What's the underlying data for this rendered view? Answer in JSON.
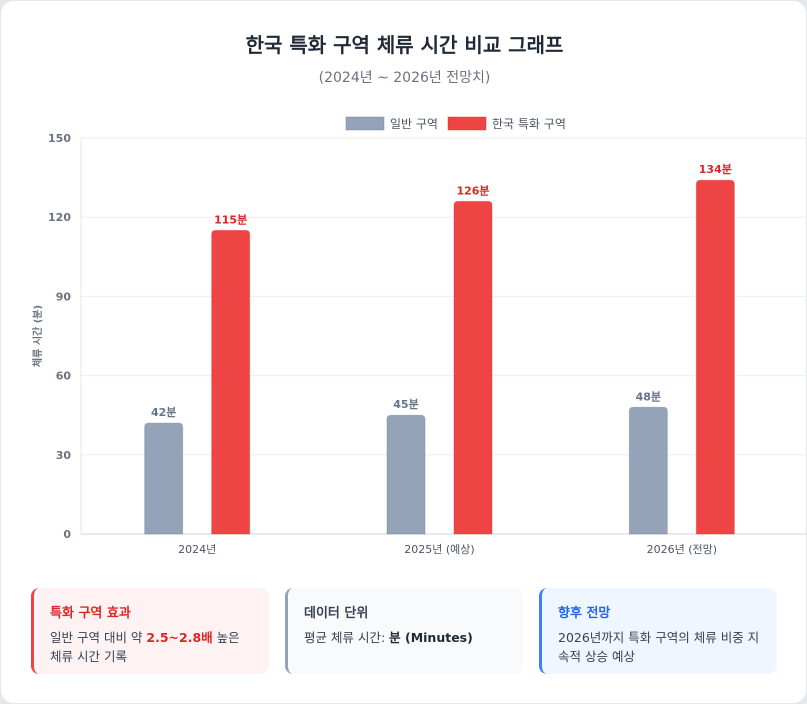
{
  "header": {
    "title": "한국 특화 구역 체류 시간 비교 그래프",
    "subtitle": "(2024년 ~ 2026년 전망치)"
  },
  "chart_data": {
    "type": "bar",
    "categories": [
      "2024년",
      "2025년 (예상)",
      "2026년 (전망)"
    ],
    "series": [
      {
        "name": "일반 구역",
        "values": [
          42,
          45,
          48
        ],
        "color": "#94a3b8",
        "label_color": "#64748b"
      },
      {
        "name": "한국 특화 구역",
        "values": [
          115,
          126,
          134
        ],
        "color": "#ef4444",
        "label_color": "#dc2626"
      }
    ],
    "value_suffix": "분",
    "ylabel": "체류 시간 (분)",
    "ylim": [
      0,
      150
    ],
    "yticks": [
      0,
      30,
      60,
      90,
      120,
      150
    ],
    "grid": true,
    "legend_position": "top-center"
  },
  "cards": [
    {
      "title": "특화 구역 효과",
      "text_before": "일반 구역 대비 약 ",
      "highlight": "2.5~2.8배",
      "text_after": " 높은 체류 시간 기록"
    },
    {
      "title": "데이터 단위",
      "text_before": "평균 체류 시간: ",
      "highlight": "분 (Minutes)",
      "text_after": ""
    },
    {
      "title": "향후 전망",
      "text": "2026년까지 특화 구역의 체류 비중 지속적 상승 예상"
    }
  ]
}
